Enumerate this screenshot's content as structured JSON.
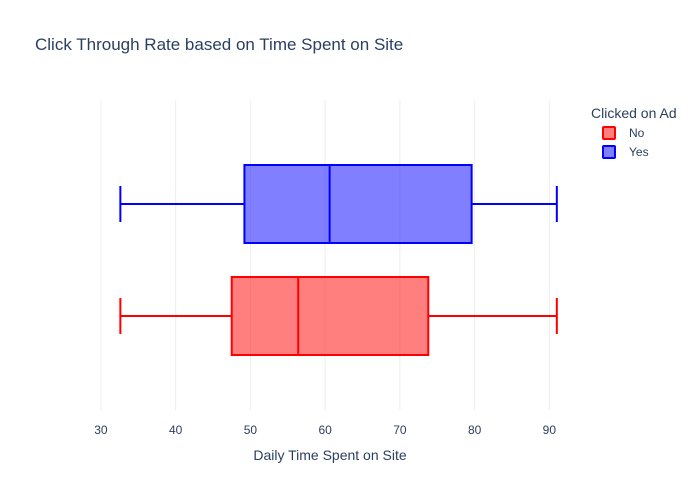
{
  "chart_data": {
    "type": "box",
    "orientation": "horizontal",
    "title": "Click Through Rate based on Time Spent on Site",
    "xlabel": "Daily Time Spent on Site",
    "ylabel": "",
    "xlim": [
      27.2,
      94.1
    ],
    "xticks": [
      30,
      40,
      50,
      60,
      70,
      80,
      90
    ],
    "grid": true,
    "legend": {
      "title": "Clicked on Ad",
      "placement": "top-right"
    },
    "series": [
      {
        "name": "No",
        "color": "#ff0000",
        "fill": "rgba(255,0,0,0.5)",
        "min": 32.6,
        "q1": 47.5,
        "median": 56.4,
        "q3": 73.8,
        "max": 91.0
      },
      {
        "name": "Yes",
        "color": "#0000ff",
        "fill": "rgba(0,0,255,0.5)",
        "min": 32.6,
        "q1": 49.2,
        "median": 60.6,
        "q3": 79.6,
        "max": 91.0
      }
    ]
  }
}
